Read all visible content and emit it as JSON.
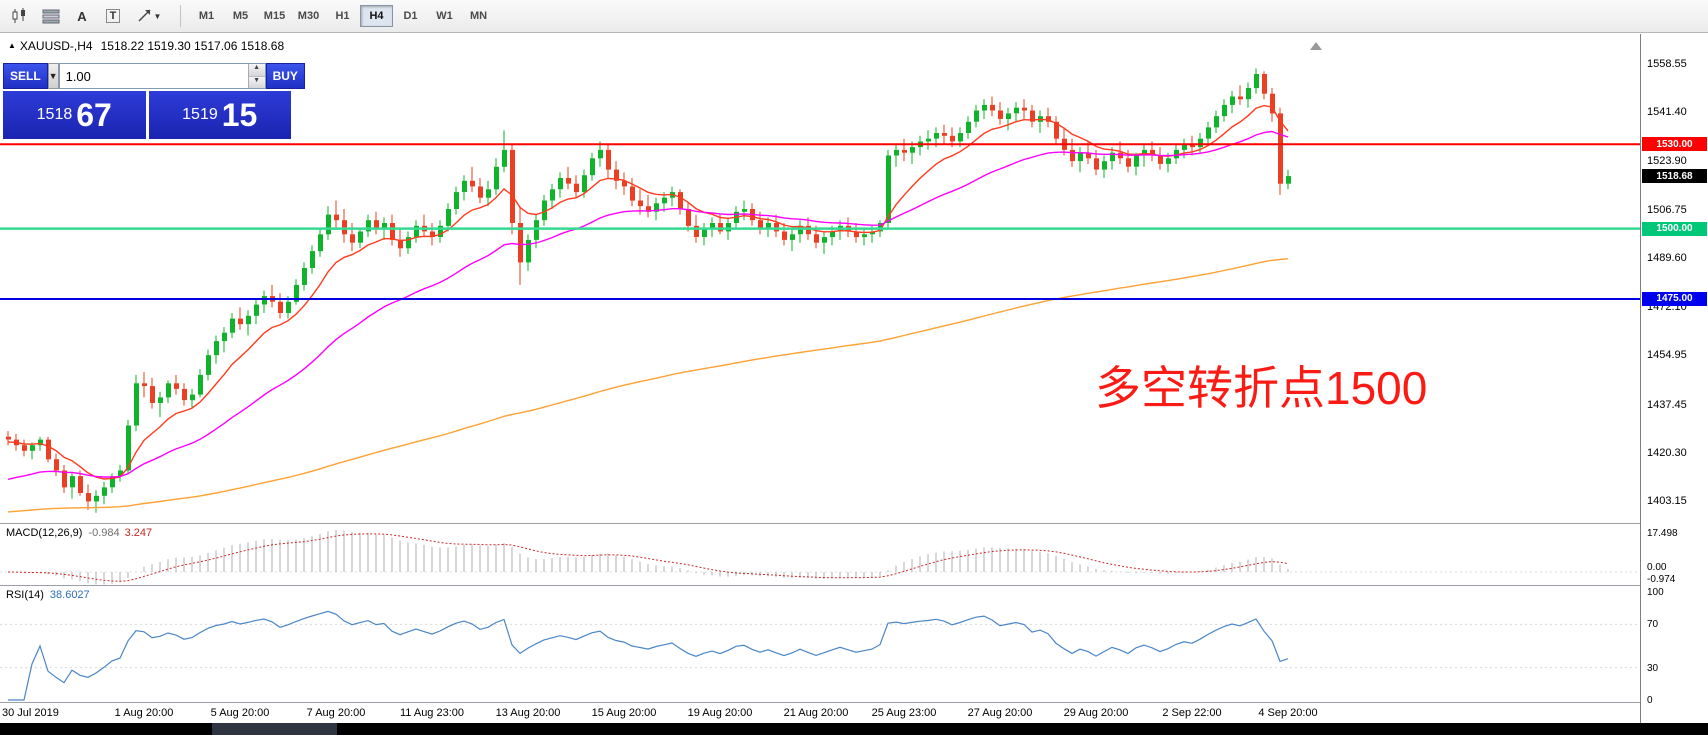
{
  "toolbar": {
    "timeframes": [
      "M1",
      "M5",
      "M15",
      "M30",
      "H1",
      "H4",
      "D1",
      "W1",
      "MN"
    ],
    "active_timeframe": "H4",
    "icon_labels": {
      "a": "A",
      "t": "T"
    },
    "icons": [
      "candlestick-chart-icon",
      "indicator-list-icon",
      "text-annotation-icon",
      "text-box-icon",
      "crosshair-tool-icon",
      "chevron-down-icon"
    ]
  },
  "symbol_header": {
    "collapse_icon": "▲",
    "symbol": "XAUUSD-,H4",
    "ohlc": "1518.22 1519.30 1517.06 1518.68"
  },
  "trade_panel": {
    "sell_label": "SELL",
    "buy_label": "BUY",
    "volume": "1.00",
    "sell_price_small": "1518",
    "sell_price_big": "67",
    "buy_price_small": "1519",
    "buy_price_big": "15"
  },
  "annotation": {
    "text": "多空转折点1500",
    "color": "#fb1b14"
  },
  "price_axis": {
    "ticks": [
      1558.55,
      1541.4,
      1523.9,
      1506.75,
      1489.6,
      1472.1,
      1454.95,
      1437.45,
      1420.3,
      1403.15
    ],
    "badges": [
      {
        "value": "1530.00",
        "bg": "#ff0000",
        "fg": "#ffffff"
      },
      {
        "value": "1518.68",
        "bg": "#000000",
        "fg": "#ffffff"
      },
      {
        "value": "1500.00",
        "bg": "#00c878",
        "fg": "#ffffff"
      },
      {
        "value": "1475.00",
        "bg": "#0000f0",
        "fg": "#ffffff"
      }
    ]
  },
  "hlines": [
    {
      "price": 1530,
      "color": "#ff0000",
      "width": 2
    },
    {
      "price": 1500,
      "color": "#35da92",
      "width": 2.5
    },
    {
      "price": 1475,
      "color": "#0000e0",
      "width": 2
    }
  ],
  "macd_panel": {
    "label": "MACD(12,26,9)",
    "value_main": "-0.984",
    "value_signal": "3.247",
    "axis": [
      "17.498",
      "0.00",
      "-0.974"
    ]
  },
  "rsi_panel": {
    "label": "RSI(14)",
    "value": "38.6027",
    "axis": [
      "100",
      "70",
      "30",
      "0"
    ]
  },
  "time_axis": {
    "labels": [
      {
        "t": "30 Jul 2019",
        "i": 0
      },
      {
        "t": "1 Aug 20:00",
        "i": 17
      },
      {
        "t": "5 Aug 20:00",
        "i": 29
      },
      {
        "t": "7 Aug 20:00",
        "i": 41
      },
      {
        "t": "11 Aug 23:00",
        "i": 53
      },
      {
        "t": "13 Aug 20:00",
        "i": 65
      },
      {
        "t": "15 Aug 20:00",
        "i": 77
      },
      {
        "t": "19 Aug 20:00",
        "i": 89
      },
      {
        "t": "21 Aug 20:00",
        "i": 101
      },
      {
        "t": "25 Aug 23:00",
        "i": 112
      },
      {
        "t": "27 Aug 20:00",
        "i": 124
      },
      {
        "t": "29 Aug 20:00",
        "i": 136
      },
      {
        "t": "2 Sep 22:00",
        "i": 148
      },
      {
        "t": "4 Sep 20:00",
        "i": 160
      }
    ]
  },
  "chart_data": {
    "type": "candlestick",
    "symbol": "XAUUSD-",
    "timeframe": "H4",
    "ohlc_display": {
      "open": "1518.22",
      "high": "1519.30",
      "low": "1517.06",
      "close": "1518.68"
    },
    "y_range": [
      1403.15,
      1558.55
    ],
    "up_color": "#0fb42a",
    "down_color": "#ea3f22",
    "horizontal_levels": [
      1530,
      1500,
      1475
    ],
    "moving_averages": [
      {
        "name": "ma-fast",
        "color": "#ff3b1e",
        "period": 10,
        "seed": 1424
      },
      {
        "name": "ma-medium",
        "color": "#ff00ff",
        "period": 34,
        "seed": 1410
      },
      {
        "name": "ma-slow",
        "color": "#ffa133",
        "period": 200,
        "seed": 1399
      }
    ],
    "candles": [
      [
        1426,
        1428,
        1423,
        1425
      ],
      [
        1425,
        1427,
        1421,
        1423
      ],
      [
        1423,
        1425,
        1419,
        1421
      ],
      [
        1421,
        1424,
        1418,
        1423
      ],
      [
        1423,
        1426,
        1421,
        1425
      ],
      [
        1425,
        1426,
        1417,
        1418
      ],
      [
        1418,
        1420,
        1412,
        1414
      ],
      [
        1414,
        1416,
        1406,
        1408
      ],
      [
        1408,
        1413,
        1404,
        1412
      ],
      [
        1412,
        1414,
        1405,
        1406
      ],
      [
        1406,
        1409,
        1400,
        1403
      ],
      [
        1403,
        1407,
        1399,
        1405
      ],
      [
        1405,
        1410,
        1402,
        1408
      ],
      [
        1408,
        1413,
        1406,
        1412
      ],
      [
        1412,
        1416,
        1410,
        1414
      ],
      [
        1414,
        1432,
        1413,
        1430
      ],
      [
        1430,
        1448,
        1428,
        1445
      ],
      [
        1445,
        1449,
        1440,
        1444
      ],
      [
        1444,
        1447,
        1436,
        1438
      ],
      [
        1438,
        1442,
        1433,
        1440
      ],
      [
        1440,
        1446,
        1438,
        1445
      ],
      [
        1445,
        1448,
        1441,
        1443
      ],
      [
        1443,
        1445,
        1437,
        1439
      ],
      [
        1439,
        1443,
        1436,
        1441
      ],
      [
        1441,
        1450,
        1440,
        1448
      ],
      [
        1448,
        1457,
        1446,
        1455
      ],
      [
        1455,
        1462,
        1452,
        1460
      ],
      [
        1460,
        1465,
        1456,
        1463
      ],
      [
        1463,
        1470,
        1461,
        1468
      ],
      [
        1468,
        1472,
        1464,
        1466
      ],
      [
        1466,
        1471,
        1462,
        1469
      ],
      [
        1469,
        1475,
        1466,
        1473
      ],
      [
        1473,
        1478,
        1470,
        1476
      ],
      [
        1476,
        1480,
        1472,
        1474
      ],
      [
        1474,
        1477,
        1468,
        1470
      ],
      [
        1470,
        1476,
        1468,
        1474
      ],
      [
        1474,
        1482,
        1473,
        1480
      ],
      [
        1480,
        1488,
        1478,
        1486
      ],
      [
        1486,
        1494,
        1484,
        1492
      ],
      [
        1492,
        1500,
        1490,
        1498
      ],
      [
        1498,
        1508,
        1496,
        1505
      ],
      [
        1505,
        1510,
        1500,
        1503
      ],
      [
        1503,
        1507,
        1495,
        1498
      ],
      [
        1498,
        1502,
        1492,
        1495
      ],
      [
        1495,
        1500,
        1493,
        1499
      ],
      [
        1499,
        1505,
        1497,
        1503
      ],
      [
        1503,
        1506,
        1498,
        1500
      ],
      [
        1500,
        1504,
        1496,
        1502
      ],
      [
        1502,
        1505,
        1494,
        1496
      ],
      [
        1496,
        1500,
        1490,
        1493
      ],
      [
        1493,
        1499,
        1491,
        1497
      ],
      [
        1497,
        1503,
        1495,
        1501
      ],
      [
        1501,
        1505,
        1497,
        1499
      ],
      [
        1499,
        1502,
        1494,
        1497
      ],
      [
        1497,
        1503,
        1495,
        1501
      ],
      [
        1501,
        1509,
        1499,
        1507
      ],
      [
        1507,
        1515,
        1505,
        1513
      ],
      [
        1513,
        1519,
        1510,
        1517
      ],
      [
        1517,
        1522,
        1513,
        1515
      ],
      [
        1515,
        1518,
        1509,
        1511
      ],
      [
        1511,
        1517,
        1508,
        1514
      ],
      [
        1514,
        1525,
        1512,
        1522
      ],
      [
        1522,
        1535,
        1520,
        1528
      ],
      [
        1528,
        1530,
        1498,
        1502
      ],
      [
        1502,
        1508,
        1480,
        1488
      ],
      [
        1488,
        1498,
        1485,
        1496
      ],
      [
        1496,
        1505,
        1493,
        1503
      ],
      [
        1503,
        1512,
        1501,
        1510
      ],
      [
        1510,
        1516,
        1507,
        1514
      ],
      [
        1514,
        1520,
        1511,
        1518
      ],
      [
        1518,
        1522,
        1514,
        1516
      ],
      [
        1516,
        1519,
        1511,
        1513
      ],
      [
        1513,
        1521,
        1511,
        1519
      ],
      [
        1519,
        1527,
        1517,
        1525
      ],
      [
        1525,
        1531,
        1522,
        1528
      ],
      [
        1528,
        1530,
        1518,
        1521
      ],
      [
        1521,
        1524,
        1514,
        1517
      ],
      [
        1517,
        1520,
        1512,
        1515
      ],
      [
        1515,
        1518,
        1508,
        1510
      ],
      [
        1510,
        1514,
        1505,
        1508
      ],
      [
        1508,
        1512,
        1504,
        1506
      ],
      [
        1506,
        1511,
        1503,
        1509
      ],
      [
        1509,
        1513,
        1506,
        1511
      ],
      [
        1511,
        1515,
        1508,
        1513
      ],
      [
        1513,
        1514,
        1505,
        1507
      ],
      [
        1507,
        1509,
        1499,
        1501
      ],
      [
        1501,
        1505,
        1495,
        1497
      ],
      [
        1497,
        1502,
        1494,
        1500
      ],
      [
        1500,
        1504,
        1497,
        1502
      ],
      [
        1502,
        1505,
        1498,
        1499
      ],
      [
        1499,
        1504,
        1496,
        1502
      ],
      [
        1502,
        1508,
        1500,
        1506
      ],
      [
        1506,
        1510,
        1503,
        1507
      ],
      [
        1507,
        1509,
        1501,
        1503
      ],
      [
        1503,
        1506,
        1498,
        1500
      ],
      [
        1500,
        1504,
        1497,
        1502
      ],
      [
        1502,
        1505,
        1497,
        1499
      ],
      [
        1499,
        1502,
        1494,
        1496
      ],
      [
        1496,
        1500,
        1492,
        1498
      ],
      [
        1498,
        1503,
        1495,
        1501
      ],
      [
        1501,
        1504,
        1496,
        1498
      ],
      [
        1498,
        1501,
        1493,
        1495
      ],
      [
        1495,
        1499,
        1491,
        1497
      ],
      [
        1497,
        1501,
        1494,
        1499
      ],
      [
        1499,
        1503,
        1496,
        1501
      ],
      [
        1501,
        1504,
        1497,
        1499
      ],
      [
        1499,
        1502,
        1495,
        1497
      ],
      [
        1497,
        1500,
        1494,
        1498
      ],
      [
        1498,
        1501,
        1495,
        1499
      ],
      [
        1499,
        1503,
        1497,
        1502
      ],
      [
        1502,
        1528,
        1500,
        1526
      ],
      [
        1526,
        1530,
        1522,
        1528
      ],
      [
        1528,
        1532,
        1524,
        1527
      ],
      [
        1527,
        1531,
        1523,
        1529
      ],
      [
        1529,
        1533,
        1526,
        1531
      ],
      [
        1531,
        1535,
        1528,
        1532
      ],
      [
        1532,
        1536,
        1529,
        1534
      ],
      [
        1534,
        1537,
        1530,
        1533
      ],
      [
        1533,
        1536,
        1529,
        1531
      ],
      [
        1531,
        1536,
        1529,
        1534
      ],
      [
        1534,
        1540,
        1532,
        1538
      ],
      [
        1538,
        1544,
        1536,
        1542
      ],
      [
        1542,
        1546,
        1539,
        1544
      ],
      [
        1544,
        1547,
        1540,
        1542
      ],
      [
        1542,
        1545,
        1537,
        1539
      ],
      [
        1539,
        1543,
        1535,
        1541
      ],
      [
        1541,
        1545,
        1538,
        1543
      ],
      [
        1543,
        1546,
        1539,
        1542
      ],
      [
        1542,
        1544,
        1536,
        1538
      ],
      [
        1538,
        1542,
        1534,
        1540
      ],
      [
        1540,
        1543,
        1536,
        1538
      ],
      [
        1538,
        1540,
        1530,
        1532
      ],
      [
        1532,
        1536,
        1526,
        1528
      ],
      [
        1528,
        1532,
        1522,
        1524
      ],
      [
        1524,
        1529,
        1520,
        1527
      ],
      [
        1527,
        1531,
        1523,
        1525
      ],
      [
        1525,
        1528,
        1519,
        1521
      ],
      [
        1521,
        1526,
        1518,
        1524
      ],
      [
        1524,
        1529,
        1521,
        1527
      ],
      [
        1527,
        1531,
        1523,
        1525
      ],
      [
        1525,
        1528,
        1520,
        1522
      ],
      [
        1522,
        1527,
        1519,
        1526
      ],
      [
        1526,
        1530,
        1522,
        1528
      ],
      [
        1528,
        1531,
        1524,
        1526
      ],
      [
        1526,
        1529,
        1521,
        1523
      ],
      [
        1523,
        1527,
        1520,
        1525
      ],
      [
        1525,
        1530,
        1523,
        1528
      ],
      [
        1528,
        1532,
        1525,
        1530
      ],
      [
        1530,
        1533,
        1526,
        1529
      ],
      [
        1529,
        1534,
        1527,
        1532
      ],
      [
        1532,
        1538,
        1530,
        1536
      ],
      [
        1536,
        1542,
        1534,
        1540
      ],
      [
        1540,
        1546,
        1538,
        1544
      ],
      [
        1544,
        1549,
        1541,
        1547
      ],
      [
        1547,
        1551,
        1544,
        1546
      ],
      [
        1546,
        1552,
        1543,
        1550
      ],
      [
        1550,
        1557,
        1548,
        1555
      ],
      [
        1555,
        1556,
        1546,
        1548
      ],
      [
        1548,
        1550,
        1538,
        1541
      ],
      [
        1541,
        1543,
        1512,
        1516
      ],
      [
        1516,
        1521,
        1514,
        1518.7
      ]
    ],
    "indicators": [
      {
        "name": "MACD",
        "params": [
          12,
          26,
          9
        ],
        "display_main": -0.984,
        "display_signal": 3.247,
        "axis_max": 17.498
      },
      {
        "name": "RSI",
        "params": [
          14
        ],
        "display_value": 38.6027,
        "axis": [
          100,
          70,
          30,
          0
        ]
      }
    ]
  }
}
